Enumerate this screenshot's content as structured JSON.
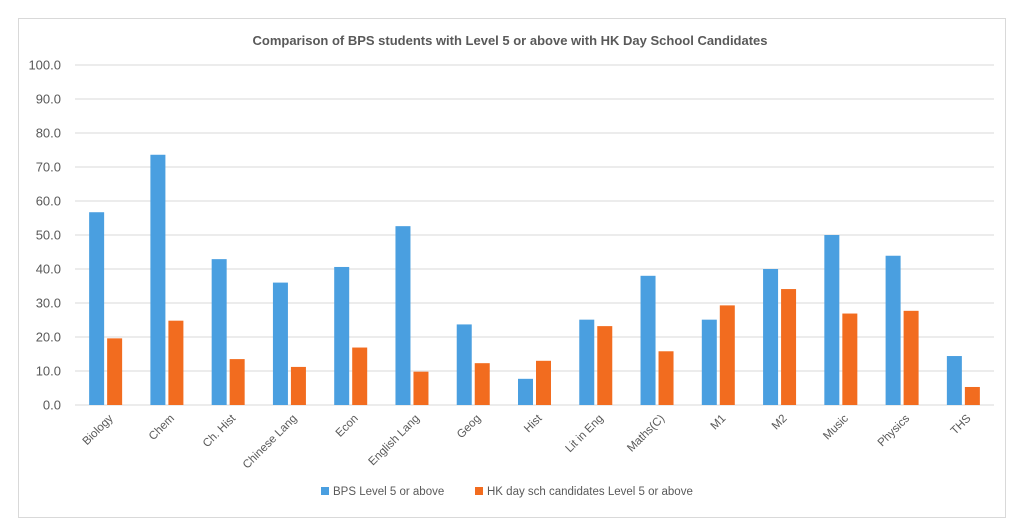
{
  "chart_data": {
    "type": "bar",
    "title": "Comparison of BPS students with Level 5 or above with HK Day School Candidates",
    "xlabel": "",
    "ylabel": "",
    "ylim": [
      0,
      100
    ],
    "yticks": [
      "0.0",
      "10.0",
      "20.0",
      "30.0",
      "40.0",
      "50.0",
      "60.0",
      "70.0",
      "80.0",
      "90.0",
      "100.0"
    ],
    "ytick_values": [
      0,
      10,
      20,
      30,
      40,
      50,
      60,
      70,
      80,
      90,
      100
    ],
    "grid": true,
    "legend_position": "bottom",
    "categories": [
      "Biology",
      "Chem",
      "Ch. Hist",
      "Chinese Lang",
      "Econ",
      "English Lang",
      "Geog",
      "Hist",
      "Lit in Eng",
      "Maths(C)",
      "M1",
      "M2",
      "Music",
      "Physics",
      "THS"
    ],
    "series": [
      {
        "name": "BPS Level 5 or above",
        "color": "#4a9fe0",
        "values": [
          56.7,
          73.6,
          42.9,
          36.0,
          40.6,
          52.6,
          23.7,
          7.7,
          25.1,
          38.0,
          25.1,
          40.0,
          50.0,
          43.9,
          14.4
        ]
      },
      {
        "name": "HK day sch candidates Level 5 or above",
        "color": "#f26c1f",
        "values": [
          19.6,
          24.8,
          13.5,
          11.2,
          16.9,
          9.8,
          12.3,
          13.0,
          23.2,
          15.8,
          29.3,
          34.1,
          26.9,
          27.7,
          5.3
        ]
      }
    ]
  }
}
